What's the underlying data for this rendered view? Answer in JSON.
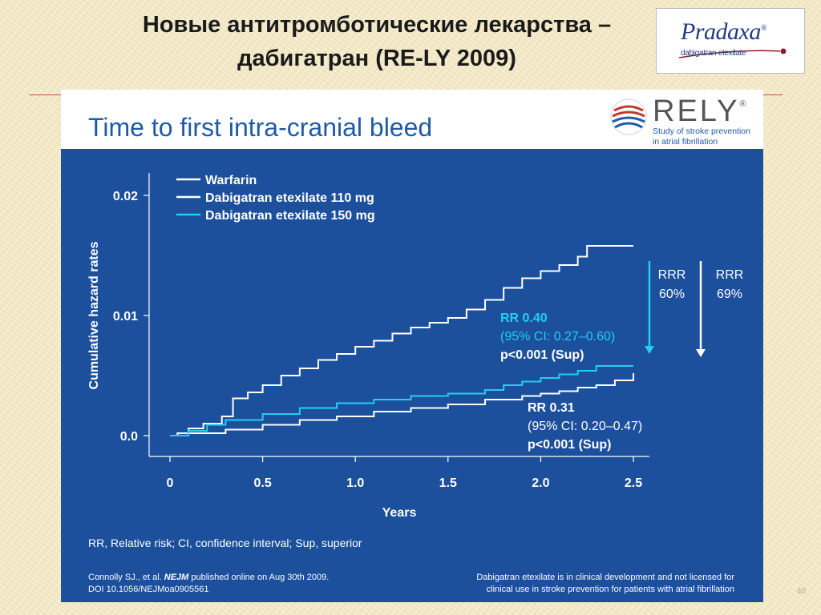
{
  "slide": {
    "title_line1": "Новые антитромботические лекарства –",
    "title_line2": "дабигатран (RE-LY 2009)",
    "subtitle": "Time to first intra-cranial bleed",
    "page_number": "40"
  },
  "pradaxa_logo": {
    "name": "Pradaxa",
    "mark": "®",
    "subname": "dabigatran etexilate"
  },
  "rely_logo": {
    "name": "RELY",
    "mark": "®",
    "tagline_line1": "Study of stroke prevention",
    "tagline_line2": "in atrial fibrillation"
  },
  "colors": {
    "panel_bg": "#1c4f9c",
    "warfarin": "#ffffff",
    "dabigatran_110": "#ffffff",
    "dabigatran_150": "#1fd0f2",
    "annotation_dark": "#ffffff",
    "annotation_cyan": "#1fd0f2",
    "slide_bg": "#f6ecc9",
    "title_rule": "#c0504d"
  },
  "chart_data": {
    "type": "line",
    "title": "",
    "xlabel": "Years",
    "ylabel": "Cumulative hazard rates",
    "xlim": [
      0,
      2.5
    ],
    "ylim": [
      0,
      0.02
    ],
    "xticks": [
      0,
      0.5,
      1.0,
      1.5,
      2.0,
      2.5
    ],
    "xtick_labels": [
      "0",
      "0.5",
      "1.0",
      "1.5",
      "2.0",
      "2.5"
    ],
    "yticks": [
      0,
      0.01,
      0.02
    ],
    "ytick_labels": [
      "0.0",
      "0.01",
      "0.02"
    ],
    "grid": false,
    "legend_position": "top-left",
    "series": [
      {
        "name": "Warfarin",
        "color": "#ffffff",
        "x": [
          0.0,
          0.04,
          0.1,
          0.18,
          0.28,
          0.34,
          0.42,
          0.5,
          0.6,
          0.7,
          0.8,
          0.9,
          1.0,
          1.1,
          1.2,
          1.3,
          1.4,
          1.5,
          1.6,
          1.7,
          1.8,
          1.9,
          2.0,
          2.1,
          2.2,
          2.25,
          2.5
        ],
        "y": [
          0.0,
          0.0002,
          0.0006,
          0.001,
          0.0016,
          0.0031,
          0.0036,
          0.0042,
          0.005,
          0.0056,
          0.0063,
          0.0068,
          0.0074,
          0.0079,
          0.0085,
          0.009,
          0.0094,
          0.0098,
          0.0105,
          0.0113,
          0.0123,
          0.0131,
          0.0137,
          0.0142,
          0.0149,
          0.0158,
          0.0158
        ]
      },
      {
        "name": "Dabigatran etexilate 110 mg",
        "color": "#ffffff",
        "x": [
          0.0,
          0.1,
          0.3,
          0.5,
          0.7,
          0.9,
          1.1,
          1.3,
          1.5,
          1.7,
          1.9,
          2.0,
          2.1,
          2.2,
          2.3,
          2.4,
          2.5
        ],
        "y": [
          0.0,
          0.0002,
          0.0005,
          0.0009,
          0.0013,
          0.0016,
          0.002,
          0.0023,
          0.0026,
          0.003,
          0.0033,
          0.0035,
          0.0037,
          0.004,
          0.0042,
          0.0046,
          0.0052
        ]
      },
      {
        "name": "Dabigatran etexilate 150 mg",
        "color": "#1fd0f2",
        "x": [
          0.0,
          0.1,
          0.2,
          0.3,
          0.5,
          0.7,
          0.9,
          1.1,
          1.3,
          1.5,
          1.7,
          1.8,
          1.9,
          2.0,
          2.1,
          2.2,
          2.3,
          2.5
        ],
        "y": [
          0.0,
          0.0004,
          0.0009,
          0.0013,
          0.0018,
          0.0023,
          0.0027,
          0.003,
          0.0033,
          0.0035,
          0.0038,
          0.0042,
          0.0045,
          0.0048,
          0.0051,
          0.0054,
          0.0058,
          0.0058
        ]
      }
    ],
    "annotations": [
      {
        "text": "RR 0.40",
        "bold": true,
        "color": "cyan"
      },
      {
        "text": "(95% CI: 0.27–0.60)",
        "bold": false,
        "color": "cyan"
      },
      {
        "text": "p<0.001 (Sup)",
        "bold": true,
        "color": "white"
      },
      {
        "text": "RR 0.31",
        "bold": true,
        "color": "white"
      },
      {
        "text": "(95% CI: 0.20–0.47)",
        "bold": false,
        "color": "white"
      },
      {
        "text": "p<0.001 (Sup)",
        "bold": true,
        "color": "white"
      }
    ],
    "reduction_labels": [
      {
        "line1": "RRR",
        "line2": "60%",
        "arrow_color": "cyan"
      },
      {
        "line1": "RRR",
        "line2": "69%",
        "arrow_color": "white"
      }
    ]
  },
  "footnote": "RR, Relative risk; CI, confidence interval; Sup, superior",
  "citation": {
    "line1_pre": "Connolly SJ., et al. ",
    "journal": "NEJM",
    "line1_post": " published online on Aug 30th 2009.",
    "line2": "DOI 10.1056/NEJMoa0905561"
  },
  "disclaimer": {
    "line1": "Dabigatran etexilate is in clinical development and not licensed for",
    "line2": "clinical use in stroke prevention for patients with atrial fibrillation"
  }
}
